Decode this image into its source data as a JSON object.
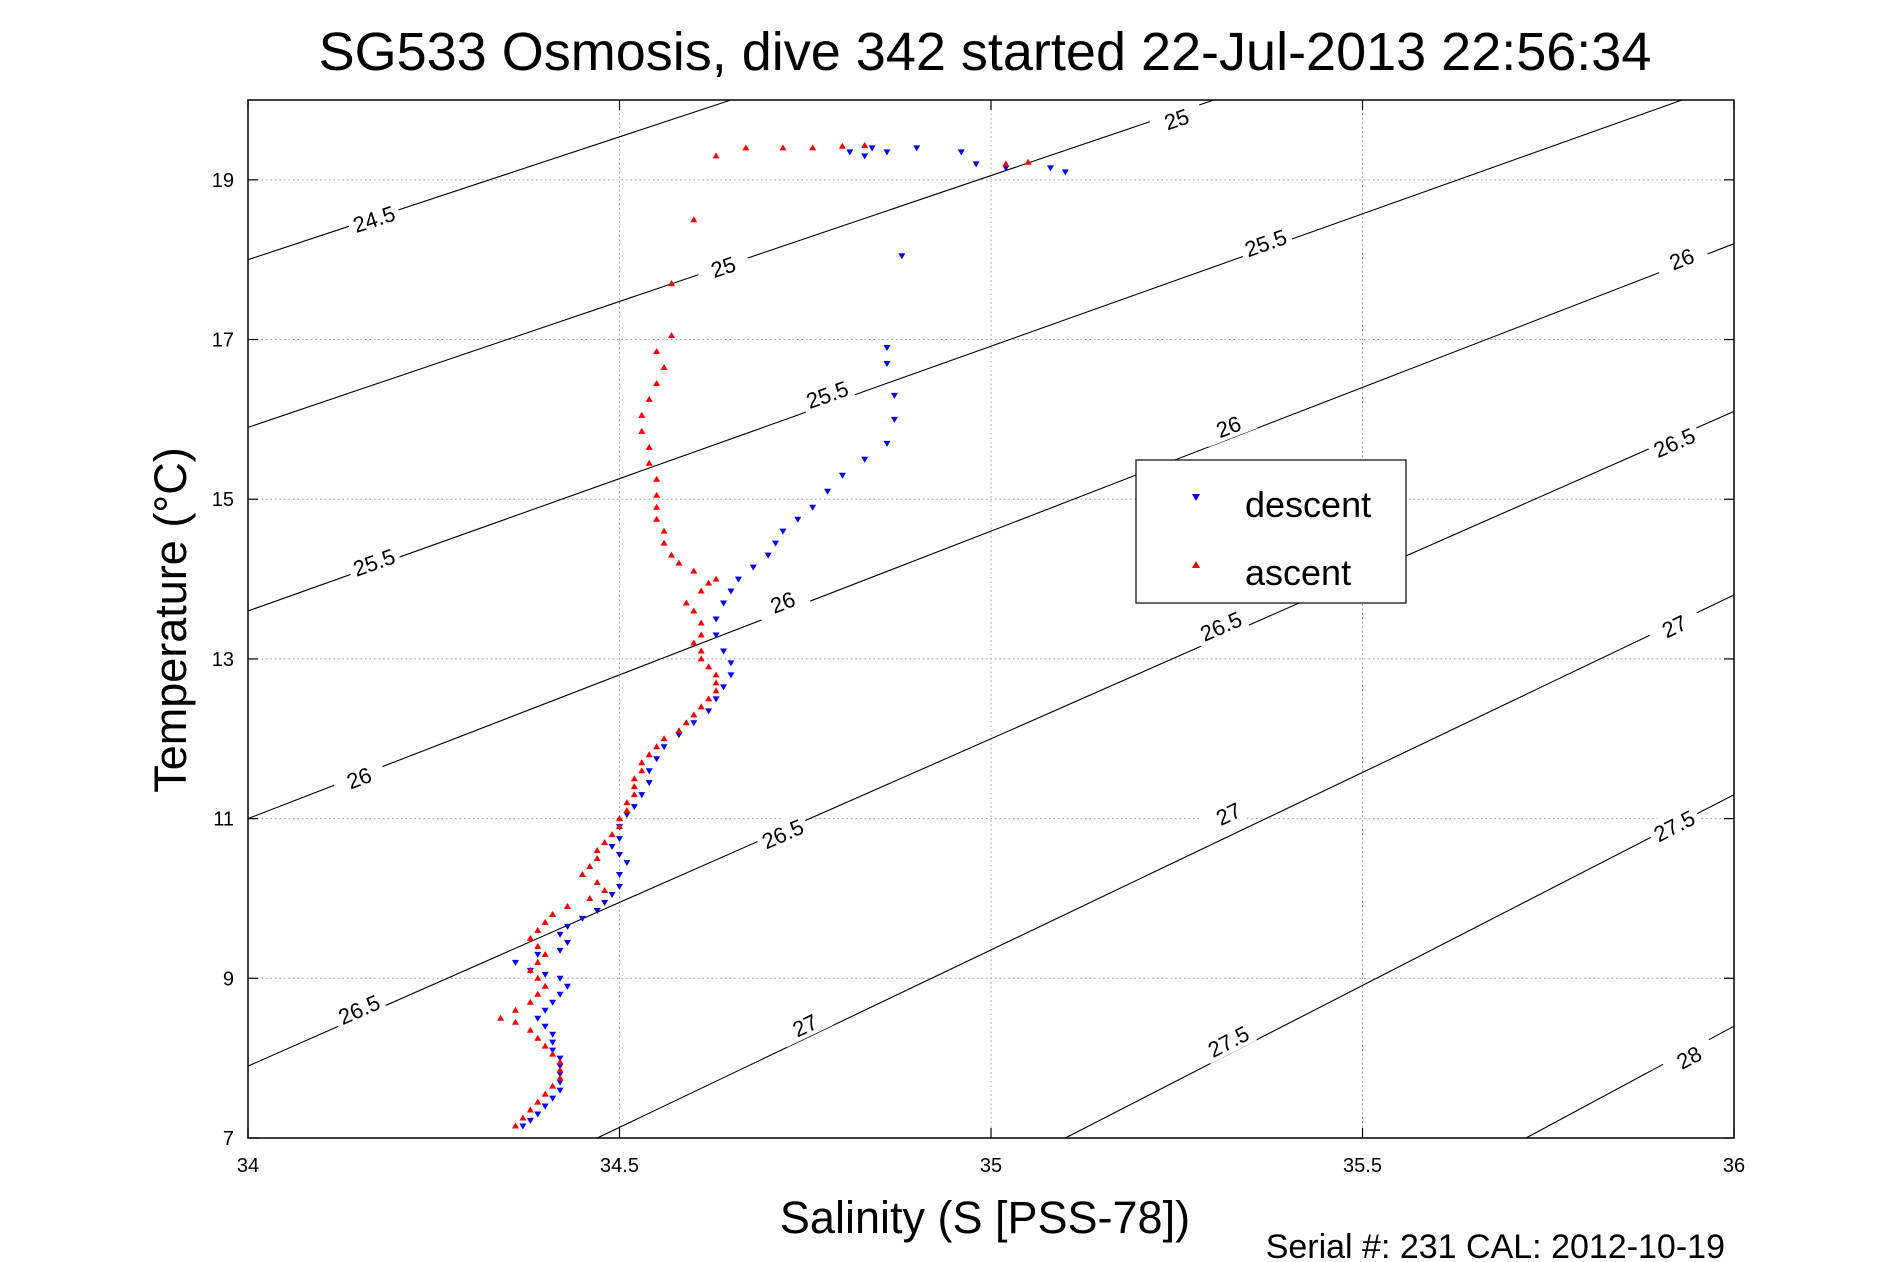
{
  "chart_data": {
    "type": "scatter",
    "title": "SG533 Osmosis, dive 342 started 22-Jul-2013 22:56:34",
    "xlabel": "Salinity (S [PSS-78])",
    "ylabel": "Temperature (°C)",
    "xlim": [
      34,
      36
    ],
    "ylim": [
      7,
      20
    ],
    "xticks": [
      "34",
      "34.5",
      "35",
      "35.5",
      "36"
    ],
    "yticks": [
      "7",
      "9",
      "11",
      "13",
      "15",
      "17",
      "19"
    ],
    "grid": true,
    "legend_position": "center-right",
    "footer": "Serial #: 231  CAL: 2012-10-19",
    "contours": [
      {
        "level": "24.5",
        "points": [
          [
            34,
            18.0
          ],
          [
            34.65,
            20.0
          ]
        ],
        "labels": [
          [
            34.17,
            18.5
          ]
        ]
      },
      {
        "level": "25",
        "points": [
          [
            34,
            15.9
          ],
          [
            35.3,
            20.0
          ]
        ],
        "labels": [
          [
            34.64,
            17.9
          ],
          [
            35.25,
            19.75
          ]
        ]
      },
      {
        "level": "25.5",
        "points": [
          [
            34,
            13.6
          ],
          [
            35.93,
            20.0
          ]
        ],
        "labels": [
          [
            34.17,
            14.2
          ],
          [
            34.78,
            16.3
          ],
          [
            35.37,
            18.2
          ]
        ]
      },
      {
        "level": "26",
        "points": [
          [
            34,
            11.0
          ],
          [
            36,
            18.2
          ]
        ],
        "labels": [
          [
            34.15,
            11.5
          ],
          [
            34.72,
            13.7
          ],
          [
            35.32,
            15.9
          ],
          [
            35.93,
            18.0
          ]
        ]
      },
      {
        "level": "26.5",
        "points": [
          [
            34,
            7.9
          ],
          [
            36,
            16.1
          ]
        ],
        "labels": [
          [
            34.15,
            8.6
          ],
          [
            34.72,
            10.8
          ],
          [
            35.31,
            13.4
          ],
          [
            35.92,
            15.7
          ]
        ]
      },
      {
        "level": "27",
        "points": [
          [
            34.47,
            7.0
          ],
          [
            36,
            13.8
          ]
        ],
        "labels": [
          [
            34.75,
            8.4
          ],
          [
            35.32,
            11.05
          ],
          [
            35.92,
            13.4
          ]
        ]
      },
      {
        "level": "27.5",
        "points": [
          [
            35.1,
            7.0
          ],
          [
            36,
            11.3
          ]
        ],
        "labels": [
          [
            35.32,
            8.2
          ],
          [
            35.92,
            10.9
          ]
        ]
      },
      {
        "level": "28",
        "points": [
          [
            35.72,
            7.0
          ],
          [
            36,
            8.4
          ]
        ],
        "labels": [
          [
            35.94,
            8.0
          ]
        ]
      }
    ],
    "series": [
      {
        "name": "descent",
        "color": "#0000ff",
        "marker": "triangle-down",
        "points": [
          [
            34.37,
            7.15
          ],
          [
            34.38,
            7.22
          ],
          [
            34.39,
            7.3
          ],
          [
            34.4,
            7.4
          ],
          [
            34.41,
            7.5
          ],
          [
            34.42,
            7.6
          ],
          [
            34.42,
            7.7
          ],
          [
            34.42,
            7.8
          ],
          [
            34.42,
            7.9
          ],
          [
            34.42,
            8.0
          ],
          [
            34.41,
            8.1
          ],
          [
            34.41,
            8.2
          ],
          [
            34.41,
            8.3
          ],
          [
            34.4,
            8.4
          ],
          [
            34.39,
            8.5
          ],
          [
            34.4,
            8.6
          ],
          [
            34.41,
            8.7
          ],
          [
            34.42,
            8.8
          ],
          [
            34.43,
            8.9
          ],
          [
            34.42,
            9.0
          ],
          [
            34.4,
            9.05
          ],
          [
            34.38,
            9.1
          ],
          [
            34.36,
            9.2
          ],
          [
            34.39,
            9.3
          ],
          [
            34.42,
            9.35
          ],
          [
            34.43,
            9.45
          ],
          [
            34.42,
            9.55
          ],
          [
            34.43,
            9.65
          ],
          [
            34.45,
            9.75
          ],
          [
            34.47,
            9.85
          ],
          [
            34.48,
            9.95
          ],
          [
            34.49,
            10.05
          ],
          [
            34.5,
            10.15
          ],
          [
            34.5,
            10.3
          ],
          [
            34.51,
            10.45
          ],
          [
            34.5,
            10.55
          ],
          [
            34.49,
            10.65
          ],
          [
            34.5,
            10.75
          ],
          [
            34.5,
            10.9
          ],
          [
            34.51,
            11.05
          ],
          [
            34.52,
            11.15
          ],
          [
            34.53,
            11.3
          ],
          [
            34.54,
            11.45
          ],
          [
            34.54,
            11.6
          ],
          [
            34.55,
            11.75
          ],
          [
            34.56,
            11.9
          ],
          [
            34.58,
            12.05
          ],
          [
            34.6,
            12.2
          ],
          [
            34.62,
            12.35
          ],
          [
            34.63,
            12.5
          ],
          [
            34.64,
            12.65
          ],
          [
            34.65,
            12.8
          ],
          [
            34.65,
            12.95
          ],
          [
            34.64,
            13.1
          ],
          [
            34.63,
            13.3
          ],
          [
            34.63,
            13.5
          ],
          [
            34.64,
            13.7
          ],
          [
            34.65,
            13.85
          ],
          [
            34.66,
            14.0
          ],
          [
            34.68,
            14.15
          ],
          [
            34.7,
            14.3
          ],
          [
            34.71,
            14.45
          ],
          [
            34.72,
            14.6
          ],
          [
            34.74,
            14.75
          ],
          [
            34.76,
            14.9
          ],
          [
            34.78,
            15.1
          ],
          [
            34.8,
            15.3
          ],
          [
            34.83,
            15.5
          ],
          [
            34.86,
            15.7
          ],
          [
            34.87,
            16.0
          ],
          [
            34.87,
            16.3
          ],
          [
            34.86,
            16.7
          ],
          [
            34.86,
            16.9
          ],
          [
            34.88,
            18.05
          ],
          [
            34.83,
            19.3
          ],
          [
            34.86,
            19.35
          ],
          [
            34.9,
            19.4
          ],
          [
            34.96,
            19.35
          ],
          [
            34.98,
            19.2
          ],
          [
            35.02,
            19.15
          ],
          [
            35.08,
            19.15
          ],
          [
            35.1,
            19.1
          ],
          [
            34.81,
            19.35
          ],
          [
            34.84,
            19.4
          ]
        ]
      },
      {
        "name": "ascent",
        "color": "#ff0000",
        "marker": "triangle-up",
        "points": [
          [
            34.36,
            7.15
          ],
          [
            34.37,
            7.25
          ],
          [
            34.38,
            7.35
          ],
          [
            34.39,
            7.45
          ],
          [
            34.4,
            7.55
          ],
          [
            34.41,
            7.65
          ],
          [
            34.42,
            7.75
          ],
          [
            34.42,
            7.85
          ],
          [
            34.42,
            7.95
          ],
          [
            34.41,
            8.05
          ],
          [
            34.4,
            8.15
          ],
          [
            34.39,
            8.25
          ],
          [
            34.38,
            8.35
          ],
          [
            34.36,
            8.45
          ],
          [
            34.34,
            8.5
          ],
          [
            34.36,
            8.6
          ],
          [
            34.38,
            8.7
          ],
          [
            34.39,
            8.8
          ],
          [
            34.4,
            8.9
          ],
          [
            34.39,
            9.0
          ],
          [
            34.38,
            9.1
          ],
          [
            34.39,
            9.2
          ],
          [
            34.4,
            9.3
          ],
          [
            34.39,
            9.4
          ],
          [
            34.38,
            9.5
          ],
          [
            34.39,
            9.6
          ],
          [
            34.4,
            9.7
          ],
          [
            34.41,
            9.8
          ],
          [
            34.43,
            9.9
          ],
          [
            34.46,
            10.0
          ],
          [
            34.48,
            10.1
          ],
          [
            34.47,
            10.2
          ],
          [
            34.45,
            10.3
          ],
          [
            34.46,
            10.4
          ],
          [
            34.47,
            10.5
          ],
          [
            34.47,
            10.6
          ],
          [
            34.48,
            10.7
          ],
          [
            34.49,
            10.8
          ],
          [
            34.5,
            10.9
          ],
          [
            34.5,
            11.0
          ],
          [
            34.51,
            11.1
          ],
          [
            34.51,
            11.2
          ],
          [
            34.52,
            11.3
          ],
          [
            34.52,
            11.4
          ],
          [
            34.52,
            11.5
          ],
          [
            34.53,
            11.6
          ],
          [
            34.53,
            11.7
          ],
          [
            34.54,
            11.8
          ],
          [
            34.55,
            11.9
          ],
          [
            34.56,
            12.0
          ],
          [
            34.58,
            12.1
          ],
          [
            34.59,
            12.2
          ],
          [
            34.6,
            12.3
          ],
          [
            34.61,
            12.4
          ],
          [
            34.62,
            12.5
          ],
          [
            34.63,
            12.6
          ],
          [
            34.63,
            12.7
          ],
          [
            34.63,
            12.8
          ],
          [
            34.62,
            12.9
          ],
          [
            34.61,
            13.0
          ],
          [
            34.61,
            13.1
          ],
          [
            34.6,
            13.2
          ],
          [
            34.61,
            13.3
          ],
          [
            34.61,
            13.45
          ],
          [
            34.6,
            13.6
          ],
          [
            34.59,
            13.7
          ],
          [
            34.61,
            13.85
          ],
          [
            34.62,
            13.95
          ],
          [
            34.63,
            14.0
          ],
          [
            34.6,
            14.1
          ],
          [
            34.58,
            14.2
          ],
          [
            34.57,
            14.3
          ],
          [
            34.56,
            14.45
          ],
          [
            34.56,
            14.6
          ],
          [
            34.55,
            14.75
          ],
          [
            34.55,
            14.9
          ],
          [
            34.55,
            15.05
          ],
          [
            34.55,
            15.25
          ],
          [
            34.54,
            15.45
          ],
          [
            34.54,
            15.65
          ],
          [
            34.53,
            15.85
          ],
          [
            34.53,
            16.05
          ],
          [
            34.54,
            16.25
          ],
          [
            34.55,
            16.45
          ],
          [
            34.56,
            16.65
          ],
          [
            34.55,
            16.85
          ],
          [
            34.57,
            17.05
          ],
          [
            34.57,
            17.7
          ],
          [
            34.6,
            18.5
          ],
          [
            34.63,
            19.3
          ],
          [
            34.67,
            19.4
          ],
          [
            34.72,
            19.4
          ],
          [
            34.76,
            19.4
          ],
          [
            34.8,
            19.42
          ],
          [
            34.83,
            19.43
          ],
          [
            35.02,
            19.2
          ],
          [
            35.05,
            19.22
          ]
        ]
      }
    ]
  }
}
